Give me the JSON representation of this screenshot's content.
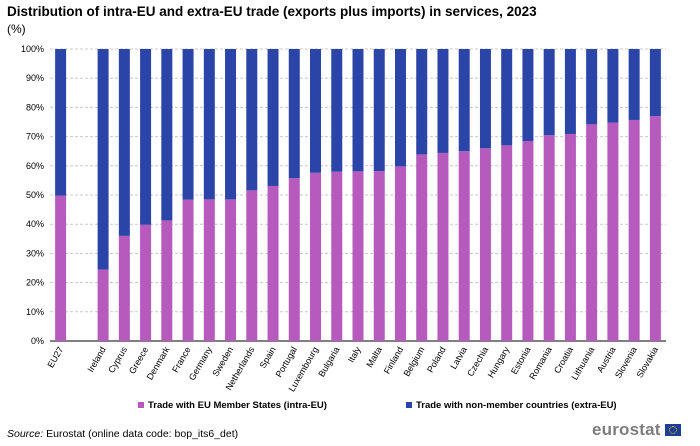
{
  "title": "Distribution of intra-EU and extra-EU trade (exports plus imports) in services, 2023",
  "subtitle": "(%)",
  "source_label": "Source:",
  "source_text": " Eurostat (online data code: bop_its6_det)",
  "logo_text": "eurostat",
  "colors": {
    "intra": "#b65bbd",
    "extra": "#2a44a8",
    "grid": "#c8c8c8",
    "axis": "#000000"
  },
  "chart_data": {
    "type": "bar",
    "stacked": true,
    "title": "Distribution of intra-EU and extra-EU trade (exports plus imports) in services, 2023",
    "ylabel": "(%)",
    "ylim": [
      0,
      100
    ],
    "yticks": [
      "0%",
      "10%",
      "20%",
      "30%",
      "40%",
      "50%",
      "60%",
      "70%",
      "80%",
      "90%",
      "100%"
    ],
    "categories": [
      "EU27",
      "",
      "Ireland",
      "Cyprus",
      "Greece",
      "Denmark",
      "France",
      "Germany",
      "Sweden",
      "Netherlands",
      "Spain",
      "Portugal",
      "Luxembourg",
      "Bulgaria",
      "Italy",
      "Malta",
      "Finland",
      "Belgium",
      "Poland",
      "Latvia",
      "Czechia",
      "Hungary",
      "Estonia",
      "Romania",
      "Croatia",
      "Lithuania",
      "Austria",
      "Slovenia",
      "Slovakia"
    ],
    "series": [
      {
        "name": "Trade with EU Member States (intra-EU)",
        "values": [
          49.8,
          null,
          24.5,
          36.0,
          39.8,
          41.3,
          48.4,
          48.5,
          48.5,
          51.6,
          53.1,
          55.8,
          57.6,
          58.0,
          58.1,
          58.2,
          59.8,
          63.9,
          64.4,
          65.0,
          66.0,
          67.0,
          68.5,
          70.5,
          70.9,
          74.2,
          74.8,
          75.7,
          77.0
        ]
      },
      {
        "name": "Trade with non-member countries (extra-EU)",
        "values": [
          50.2,
          null,
          75.5,
          64.0,
          60.2,
          58.7,
          51.6,
          51.5,
          51.5,
          48.4,
          46.9,
          44.2,
          42.4,
          42.0,
          41.9,
          41.8,
          40.2,
          36.1,
          35.6,
          35.0,
          34.0,
          33.0,
          31.5,
          29.5,
          29.1,
          25.8,
          25.2,
          24.3,
          23.0
        ]
      }
    ],
    "legend": [
      "Trade with EU Member States (intra-EU)",
      "Trade with non-member countries (extra-EU)"
    ],
    "legend_position": "bottom"
  }
}
